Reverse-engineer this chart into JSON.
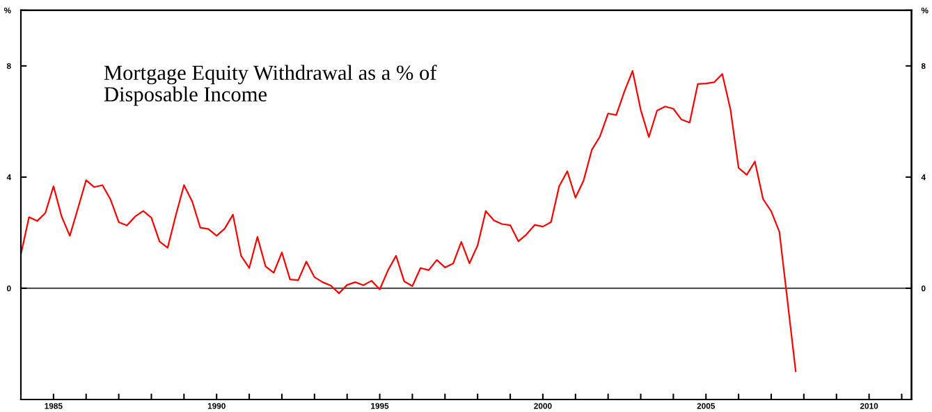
{
  "chart_data": {
    "type": "line",
    "title": "Mortgage Equity Withdrawal as a % of\nDisposable Income",
    "x": [
      1984.0,
      1984.25,
      1984.5,
      1984.75,
      1985.0,
      1985.25,
      1985.5,
      1985.75,
      1986.0,
      1986.25,
      1986.5,
      1986.75,
      1987.0,
      1987.25,
      1987.5,
      1987.75,
      1988.0,
      1988.25,
      1988.5,
      1988.75,
      1989.0,
      1989.25,
      1989.5,
      1989.75,
      1990.0,
      1990.25,
      1990.5,
      1990.75,
      1991.0,
      1991.25,
      1991.5,
      1991.75,
      1992.0,
      1992.25,
      1992.5,
      1992.75,
      1993.0,
      1993.25,
      1993.5,
      1993.75,
      1994.0,
      1994.25,
      1994.5,
      1994.75,
      1995.0,
      1995.25,
      1995.5,
      1995.75,
      1996.0,
      1996.25,
      1996.5,
      1996.75,
      1997.0,
      1997.25,
      1997.5,
      1997.75,
      1998.0,
      1998.25,
      1998.5,
      1998.75,
      1999.0,
      1999.25,
      1999.5,
      1999.75,
      2000.0,
      2000.25,
      2000.5,
      2000.75,
      2001.0,
      2001.25,
      2001.5,
      2001.75,
      2002.0,
      2002.25,
      2002.5,
      2002.75,
      2003.0,
      2003.25,
      2003.5,
      2003.75,
      2004.0,
      2004.25,
      2004.5,
      2004.75,
      2005.0,
      2005.25,
      2005.5,
      2005.75,
      2006.0,
      2006.25,
      2006.5,
      2006.75,
      2007.0,
      2007.25,
      2007.5,
      2007.75
    ],
    "series": [
      {
        "color": "#ff0000",
        "values": [
          1.22,
          2.56,
          2.42,
          2.71,
          3.67,
          2.58,
          1.89,
          2.88,
          3.89,
          3.64,
          3.71,
          3.19,
          2.38,
          2.26,
          2.58,
          2.78,
          2.54,
          1.68,
          1.46,
          2.63,
          3.71,
          3.13,
          2.18,
          2.13,
          1.89,
          2.15,
          2.65,
          1.17,
          0.73,
          1.85,
          0.79,
          0.56,
          1.29,
          0.32,
          0.29,
          0.96,
          0.4,
          0.22,
          0.1,
          -0.18,
          0.12,
          0.22,
          0.11,
          0.27,
          -0.04,
          0.64,
          1.17,
          0.25,
          0.08,
          0.73,
          0.65,
          1.02,
          0.75,
          0.89,
          1.67,
          0.9,
          1.54,
          2.78,
          2.44,
          2.31,
          2.27,
          1.69,
          1.94,
          2.28,
          2.22,
          2.38,
          3.67,
          4.21,
          3.26,
          3.88,
          4.98,
          5.46,
          6.29,
          6.23,
          7.08,
          7.82,
          6.42,
          5.44,
          6.39,
          6.54,
          6.46,
          6.07,
          5.96,
          7.35,
          7.37,
          7.41,
          7.71,
          6.44,
          4.33,
          4.08,
          4.56,
          3.21,
          2.77,
          2.03,
          -0.47,
          -2.98
        ]
      }
    ],
    "xlim": [
      1984,
      2011.3
    ],
    "xticks": [
      {
        "value": 1985,
        "label": "1985"
      },
      {
        "value": 1986,
        "label": null
      },
      {
        "value": 1987,
        "label": null
      },
      {
        "value": 1988,
        "label": null
      },
      {
        "value": 1989,
        "label": null
      },
      {
        "value": 1990,
        "label": "1990"
      },
      {
        "value": 1991,
        "label": null
      },
      {
        "value": 1992,
        "label": null
      },
      {
        "value": 1993,
        "label": null
      },
      {
        "value": 1994,
        "label": null
      },
      {
        "value": 1995,
        "label": "1995"
      },
      {
        "value": 1996,
        "label": null
      },
      {
        "value": 1997,
        "label": null
      },
      {
        "value": 1998,
        "label": null
      },
      {
        "value": 1999,
        "label": null
      },
      {
        "value": 2000,
        "label": "2000"
      },
      {
        "value": 2001,
        "label": null
      },
      {
        "value": 2002,
        "label": null
      },
      {
        "value": 2003,
        "label": null
      },
      {
        "value": 2004,
        "label": null
      },
      {
        "value": 2005,
        "label": "2005"
      },
      {
        "value": 2006,
        "label": null
      },
      {
        "value": 2007,
        "label": null
      },
      {
        "value": 2008,
        "label": null
      },
      {
        "value": 2009,
        "label": null
      },
      {
        "value": 2010,
        "label": "2010"
      },
      {
        "value": 2011,
        "label": null
      }
    ],
    "ylim": [
      -4,
      10
    ],
    "yticks": [
      0,
      4,
      8,
      {
        "value": 10,
        "label": "%"
      }
    ],
    "y2lim": [
      -4,
      10
    ],
    "y2ticks": [
      0,
      4,
      8,
      {
        "value": 10,
        "label": "%"
      }
    ],
    "ref_lines": [
      {
        "axis": "y",
        "value": 0,
        "color": "#555555"
      }
    ],
    "grid": false,
    "legend": false,
    "marker": "none",
    "line_style": "solid"
  }
}
